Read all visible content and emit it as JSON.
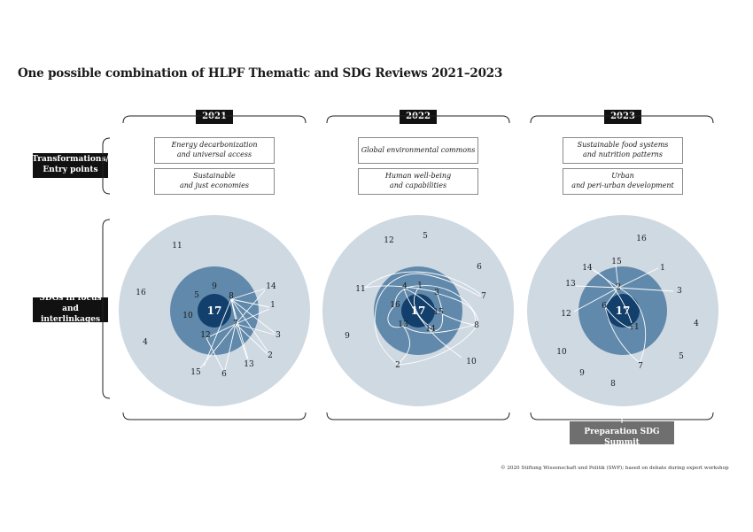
{
  "title": "One possible combination of HLPF Thematic and SDG Reviews 2021–2023",
  "row_labels": {
    "transformations": "Transformations/\nEntry points",
    "sdgs": "SDGs in focus and\ninterlinkages"
  },
  "columns": [
    {
      "year": "2021",
      "entry_points": [
        "Energy decarbonization\nand universal access",
        "Sustainable\nand just economies"
      ],
      "core": "17",
      "outer_numbers": [
        "11",
        "16",
        "4",
        "15",
        "6",
        "13",
        "2",
        "3",
        "1",
        "14"
      ],
      "middle_numbers": [
        "5",
        "9",
        "8",
        "10",
        "7",
        "12"
      ]
    },
    {
      "year": "2022",
      "entry_points": [
        "Global environmental commons",
        "Human well-being\nand capabilities"
      ],
      "core": "17",
      "outer_numbers": [
        "12",
        "5",
        "6",
        "11",
        "7",
        "9",
        "8",
        "2",
        "10"
      ],
      "middle_numbers": [
        "4",
        "1",
        "3",
        "16",
        "15",
        "13",
        "14"
      ]
    },
    {
      "year": "2023",
      "entry_points": [
        "Sustainable food systems\nand nutrition patterns",
        "Urban\nand peri-urban development"
      ],
      "core": "17",
      "outer_numbers": [
        "16",
        "15",
        "1",
        "14",
        "13",
        "3",
        "12",
        "4",
        "10",
        "5",
        "7",
        "9",
        "8"
      ],
      "middle_numbers": [
        "2",
        "6",
        "11"
      ]
    }
  ],
  "summit_label": "+\nPreparation SDG Summit",
  "credit": "© 2020 Stiftung Wissenschaft und Politik (SWP); based on debate during expert workshop",
  "colors": {
    "outer_ring": "#cfd9e2",
    "middle_ring": "#6189ab",
    "core": "#123f6b",
    "links": "#ffffff",
    "label_bg": "#111111",
    "summit_bg": "#6f6f6f"
  }
}
